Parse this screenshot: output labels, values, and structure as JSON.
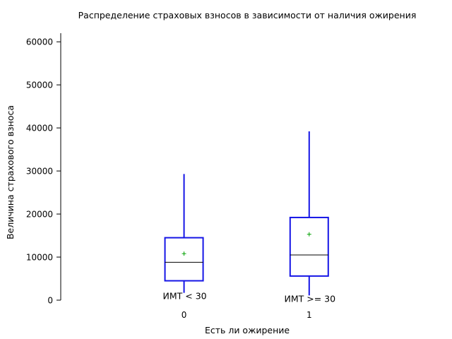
{
  "chart_data": {
    "type": "box",
    "title": "Распределение страховых взносов в зависимости от наличия ожирения",
    "xlabel": "Есть ли ожирение",
    "ylabel": "Величина страхового взноса",
    "ylim": [
      0,
      62000
    ],
    "yticks": [
      0,
      10000,
      20000,
      30000,
      40000,
      50000,
      60000
    ],
    "grid": false,
    "categories": [
      "0",
      "1"
    ],
    "boxes": [
      {
        "category": "0",
        "annotation": "ИМТ < 30",
        "whisker_low": 1700,
        "q1": 4500,
        "median": 8800,
        "q3": 14500,
        "whisker_high": 29300,
        "mean": 10800
      },
      {
        "category": "1",
        "annotation": "ИМТ >= 30",
        "whisker_low": 1100,
        "q1": 5600,
        "median": 10500,
        "q3": 19200,
        "whisker_high": 39200,
        "mean": 15300
      }
    ],
    "colors": {
      "box": "#1515e6",
      "median": "#000000",
      "mean_marker": "#00a000",
      "axis": "#000000"
    }
  }
}
